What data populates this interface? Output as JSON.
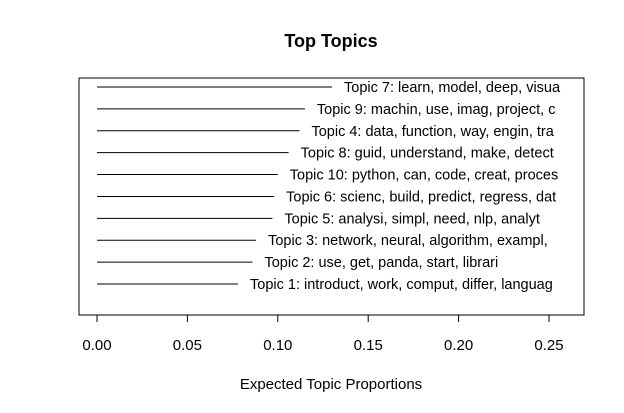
{
  "chart_data": {
    "type": "bar",
    "title": "Top Topics",
    "xlabel": "Expected Topic Proportions",
    "ylabel": "",
    "xlim": [
      -0.01,
      0.27
    ],
    "xticks": [
      0.0,
      0.05,
      0.1,
      0.15,
      0.2,
      0.25
    ],
    "xtick_labels": [
      "0.00",
      "0.05",
      "0.10",
      "0.15",
      "0.20",
      "0.25"
    ],
    "grid": false,
    "legend": "none",
    "categories": [
      "Topic 1: introduct, work, comput, differ, languag",
      "Topic 2: use, get, panda, start, librari",
      "Topic 3: network, neural, algorithm, exampl, ",
      "Topic 5: analysi, simpl, need, nlp, analyt",
      "Topic 6: scienc, build, predict, regress, dat",
      "Topic 10: python, can, code, creat, proces",
      "Topic 8: guid, understand, make, detect",
      "Topic 4: data, function, way, engin, tra",
      "Topic 9: machin, use, imag, project, c",
      "Topic 7: learn, model, deep, visua"
    ],
    "values": [
      0.078,
      0.086,
      0.088,
      0.097,
      0.098,
      0.1,
      0.106,
      0.112,
      0.115,
      0.13
    ]
  }
}
